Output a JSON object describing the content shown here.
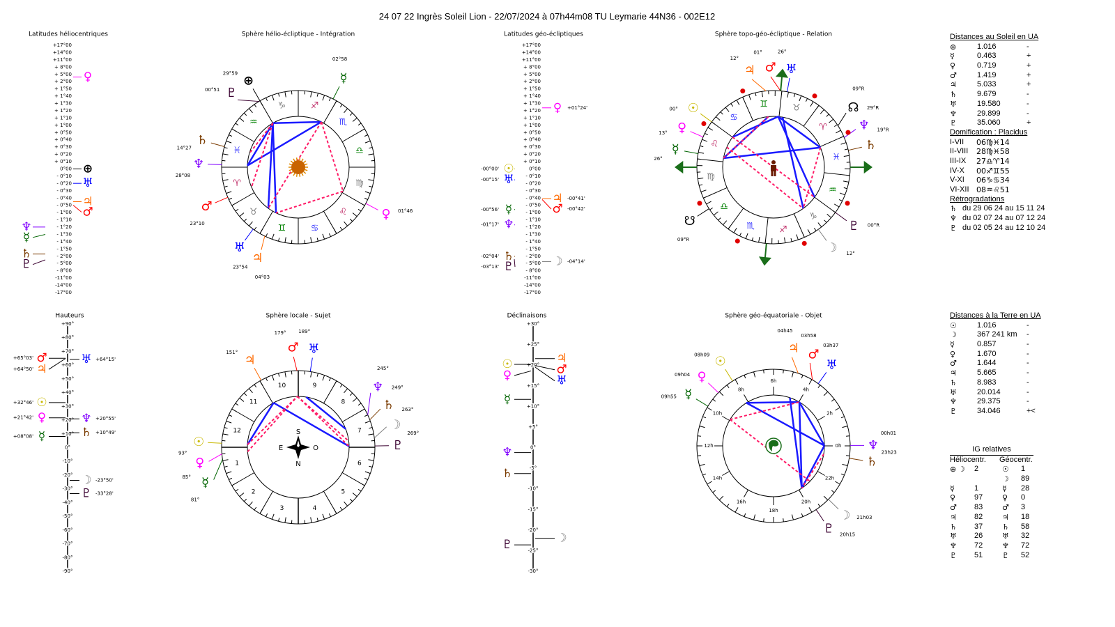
{
  "title": "24 07 22 Ingrès Soleil Lion   -  22/07/2024 à 07h44m08 TU  Leymarie  44N36 - 002E12",
  "planet_styles": {
    "sun": {
      "glyph": "☉",
      "color": "#c8b800"
    },
    "moon": {
      "glyph": "☽",
      "color": "#808080"
    },
    "mercury": {
      "glyph": "☿",
      "color": "#006400"
    },
    "venus": {
      "glyph": "♀",
      "color": "#ff00ff"
    },
    "earth": {
      "glyph": "⊕",
      "color": "#000000"
    },
    "mars": {
      "glyph": "♂",
      "color": "#ff0000"
    },
    "jupiter": {
      "glyph": "♃",
      "color": "#ff6a00"
    },
    "saturn": {
      "glyph": "♄",
      "color": "#7a3b00"
    },
    "uranus": {
      "glyph": "♅",
      "color": "#0000ff"
    },
    "neptune": {
      "glyph": "♆",
      "color": "#8000ff"
    },
    "pluto": {
      "glyph": "♇",
      "color": "#3a0030"
    },
    "north_node": {
      "glyph": "☊",
      "color": "#000000"
    },
    "south_node": {
      "glyph": "☋",
      "color": "#000000"
    }
  },
  "signs": [
    {
      "glyph": "♈",
      "color": "#c0306a"
    },
    {
      "glyph": "♉",
      "color": "#808080"
    },
    {
      "glyph": "♊",
      "color": "#008000"
    },
    {
      "glyph": "♋",
      "color": "#4040ff"
    },
    {
      "glyph": "♌",
      "color": "#c0306a"
    },
    {
      "glyph": "♍",
      "color": "#808080"
    },
    {
      "glyph": "♎",
      "color": "#008000"
    },
    {
      "glyph": "♏",
      "color": "#4040ff"
    },
    {
      "glyph": "♐",
      "color": "#c0306a"
    },
    {
      "glyph": "♑",
      "color": "#808080"
    },
    {
      "glyph": "♒",
      "color": "#008000"
    },
    {
      "glyph": "♓",
      "color": "#4040ff"
    }
  ],
  "helio_latitudes": {
    "title": "Latitudes héliocentriques",
    "ticks": [
      "+17°00",
      "+14°00",
      "+11°00",
      "+ 8°00",
      "+ 5°00",
      "+ 2°00",
      "+ 1°50",
      "+ 1°40",
      "+ 1°30",
      "+ 1°20",
      "+ 1°10",
      "+ 1°00",
      "+ 0°50",
      "+ 0°40",
      "+ 0°30",
      "+ 0°20",
      "+ 0°10",
      "0°00",
      "- 0°10",
      "- 0°20",
      "- 0°30",
      "- 0°40",
      "- 0°50",
      "- 1°00",
      "- 1°10",
      "- 1°20",
      "- 1°30",
      "- 1°40",
      "- 1°50",
      "- 2°00",
      "- 5°00",
      "- 8°00",
      "-11°00",
      "-14°00",
      "-17°00"
    ],
    "planets": [
      {
        "id": "venus",
        "lat": 3.9,
        "side": "right"
      },
      {
        "id": "earth",
        "lat": 0,
        "side": "right"
      },
      {
        "id": "uranus",
        "lat": -0.33,
        "side": "right"
      },
      {
        "id": "jupiter",
        "lat": -0.75,
        "side": "right"
      },
      {
        "id": "mars",
        "lat": -0.83,
        "side": "right"
      },
      {
        "id": "neptune",
        "lat": -1.33,
        "side": "left"
      },
      {
        "id": "mercury",
        "lat": -1.5,
        "side": "left"
      },
      {
        "id": "saturn",
        "lat": -1.95,
        "side": "left"
      },
      {
        "id": "pluto",
        "lat": -3.5,
        "side": "left"
      }
    ]
  },
  "geo_latitudes": {
    "title": "Latitudes géo-écliptiques",
    "ticks": [
      "+17°00",
      "+14°00",
      "+11°00",
      "+ 8°00",
      "+ 5°00",
      "+ 2°00",
      "+ 1°50",
      "+ 1°40",
      "+ 1°30",
      "+ 1°20",
      "+ 1°10",
      "+ 1°00",
      "+ 0°50",
      "+ 0°40",
      "+ 0°30",
      "+ 0°20",
      "+ 0°10",
      "0°00",
      "- 0°10",
      "- 0°20",
      "- 0°30",
      "- 0°40",
      "- 0°50",
      "- 1°00",
      "- 1°10",
      "- 1°20",
      "- 1°30",
      "- 1°40",
      "- 1°50",
      "- 2°00",
      "- 5°00",
      "- 8°00",
      "-11°00",
      "-14°00",
      "-17°00"
    ],
    "planets": [
      {
        "id": "sun",
        "lat": 0,
        "side": "left",
        "label": "-00°00'"
      },
      {
        "id": "uranus",
        "lat": -0.25,
        "side": "left",
        "label": "-00°15'"
      },
      {
        "id": "mercury",
        "lat": -0.93,
        "side": "left",
        "label": "-00°56'"
      },
      {
        "id": "neptune",
        "lat": -1.28,
        "side": "left",
        "label": "-01°17'"
      },
      {
        "id": "saturn",
        "lat": -2.07,
        "side": "left",
        "label": "-02°04'"
      },
      {
        "id": "pluto",
        "lat": -3.22,
        "side": "left",
        "label": "-03°13'"
      },
      {
        "id": "venus",
        "lat": 1.4,
        "side": "right",
        "label": "+01°24'"
      },
      {
        "id": "jupiter",
        "lat": -0.68,
        "side": "right",
        "label": "-00°41'"
      },
      {
        "id": "mars",
        "lat": -0.7,
        "side": "right",
        "label": "-00°42'"
      },
      {
        "id": "moon",
        "lat": -4.23,
        "side": "right",
        "label": "-04°14'"
      }
    ]
  },
  "heights": {
    "title": "Hauteurs",
    "ticks": [
      "+90°",
      "+80°",
      "+70°",
      "+60°",
      "+50°",
      "+40°",
      "+30°",
      "+20°",
      "+10°",
      "0°",
      "-10°",
      "-20°",
      "-30°",
      "-40°",
      "-50°",
      "-60°",
      "-70°",
      "-80°",
      "-90°"
    ],
    "planets": [
      {
        "id": "mars",
        "value": 65.05,
        "side": "left",
        "label": "+65°03'"
      },
      {
        "id": "jupiter",
        "value": 64.83,
        "side": "left",
        "label": "+64°50'"
      },
      {
        "id": "sun",
        "value": 32.77,
        "side": "left",
        "label": "+32°46'"
      },
      {
        "id": "venus",
        "value": 21.7,
        "side": "left",
        "label": "+21°42'"
      },
      {
        "id": "mercury",
        "value": 8.13,
        "side": "left",
        "label": "+08°08'"
      },
      {
        "id": "uranus",
        "value": 64.25,
        "side": "right",
        "label": "+64°15'"
      },
      {
        "id": "neptune",
        "value": 20.92,
        "side": "right",
        "label": "+20°55'"
      },
      {
        "id": "saturn",
        "value": 10.82,
        "side": "right",
        "label": "+10°49'"
      },
      {
        "id": "moon",
        "value": -23.83,
        "side": "right",
        "label": "-23°50'"
      },
      {
        "id": "pluto",
        "value": -33.47,
        "side": "right",
        "label": "-33°28'"
      }
    ]
  },
  "declinations": {
    "title": "Déclinaisons",
    "ticks": [
      "+30°",
      "+25°",
      "+20°",
      "+15°",
      "+10°",
      "+5°",
      "0°",
      "-5°",
      "-10°",
      "-15°",
      "-20°",
      "-25°",
      "-30°"
    ],
    "planets": [
      {
        "id": "sun",
        "value": 20.2,
        "side": "left"
      },
      {
        "id": "venus",
        "value": 18.6,
        "side": "left"
      },
      {
        "id": "mercury",
        "value": 11.7,
        "side": "left"
      },
      {
        "id": "neptune",
        "value": -1.2,
        "side": "left"
      },
      {
        "id": "saturn",
        "value": -6.3,
        "side": "left"
      },
      {
        "id": "pluto",
        "value": -23.6,
        "side": "left"
      },
      {
        "id": "jupiter",
        "value": 21.6,
        "side": "right"
      },
      {
        "id": "mars",
        "value": 19.9,
        "side": "right"
      },
      {
        "id": "uranus",
        "value": 19.5,
        "side": "right"
      },
      {
        "id": "moon",
        "value": -22.0,
        "side": "right"
      }
    ]
  },
  "helio_wheel": {
    "title": "Sphère hélio-écliptique - Intégration",
    "planets": [
      {
        "id": "pluto",
        "lon": 300.85,
        "label": "00°51"
      },
      {
        "id": "earth",
        "lon": 299.98,
        "label": "29°59"
      },
      {
        "id": "mercury",
        "lon": 242.97,
        "label": "02°58"
      },
      {
        "id": "saturn",
        "lon": 344.45,
        "label": "14°27"
      },
      {
        "id": "neptune",
        "lon": 358.13,
        "label": "28°08"
      },
      {
        "id": "mars",
        "lon": 23.17,
        "label": "23°10"
      },
      {
        "id": "uranus",
        "lon": 53.9,
        "label": "23°54"
      },
      {
        "id": "jupiter",
        "lon": 64.05,
        "label": "04°03"
      },
      {
        "id": "venus",
        "lon": 151.77,
        "label": "01°46"
      }
    ],
    "aspects": [
      {
        "a": "earth",
        "b": "mercury",
        "type": "harmonious"
      },
      {
        "a": "earth",
        "b": "neptune",
        "type": "harmonious"
      },
      {
        "a": "neptune",
        "b": "mercury",
        "type": "harmonious"
      },
      {
        "a": "earth",
        "b": "uranus",
        "type": "harmonious"
      },
      {
        "a": "earth",
        "b": "jupiter",
        "type": "harmonious"
      },
      {
        "a": "mercury",
        "b": "venus",
        "type": "tense"
      },
      {
        "a": "venus",
        "b": "jupiter",
        "type": "tense"
      },
      {
        "a": "earth",
        "b": "saturn",
        "type": "tense"
      },
      {
        "a": "earth",
        "b": "mars",
        "type": "tense"
      },
      {
        "a": "mercury",
        "b": "uranus",
        "type": "tense"
      }
    ]
  },
  "topo_wheel": {
    "title": "Sphère topo-géo-écliptique - Relation",
    "ascendant": 156.23,
    "midheaven": 60.92,
    "planets": [
      {
        "id": "jupiter",
        "lon": 72,
        "label": "12°"
      },
      {
        "id": "mars",
        "lon": 61,
        "label": "01°"
      },
      {
        "id": "uranus",
        "lon": 56,
        "label": "26°"
      },
      {
        "id": "sun",
        "lon": 120,
        "label": "00°"
      },
      {
        "id": "venus",
        "lon": 133,
        "label": "13°"
      },
      {
        "id": "mercury",
        "lon": 146,
        "label": "26°"
      },
      {
        "id": "north_node",
        "lon": 9,
        "label": "09°R"
      },
      {
        "id": "neptune",
        "lon": 359,
        "label": "29°R"
      },
      {
        "id": "saturn",
        "lon": 349,
        "label": "19°R"
      },
      {
        "id": "moon",
        "lon": 282,
        "label": "12°"
      },
      {
        "id": "pluto",
        "lon": 300,
        "label": "00°R"
      },
      {
        "id": "south_node",
        "lon": 189,
        "label": "09°R"
      }
    ],
    "aspects": [
      {
        "a": "mars",
        "b": "neptune",
        "type": "harmonious"
      },
      {
        "a": "mars",
        "b": "pluto",
        "type": "harmonious"
      },
      {
        "a": "uranus",
        "b": "moon",
        "type": "harmonious"
      },
      {
        "a": "jupiter",
        "b": "mercury",
        "type": "harmonious"
      },
      {
        "a": "mercury",
        "b": "neptune",
        "type": "harmonious"
      },
      {
        "a": "sun",
        "b": "mars",
        "type": "harmonious"
      },
      {
        "a": "neptune",
        "b": "moon",
        "type": "tense"
      },
      {
        "a": "venus",
        "b": "moon",
        "type": "tense"
      },
      {
        "a": "sun",
        "b": "pluto",
        "type": "tense"
      },
      {
        "a": "mercury",
        "b": "jupiter",
        "type": "tense"
      }
    ]
  },
  "local_wheel": {
    "title": "Sphère locale - Sujet",
    "house_numbers": [
      "1",
      "2",
      "3",
      "4",
      "5",
      "6",
      "7",
      "8",
      "9",
      "10",
      "11",
      "12"
    ],
    "cardinals": {
      "south": "S",
      "north": "N",
      "east": "E",
      "west": "O"
    },
    "planets": [
      {
        "id": "jupiter",
        "az": 151,
        "label": "151°"
      },
      {
        "id": "mars",
        "az": 179,
        "label": "179°"
      },
      {
        "id": "uranus",
        "az": 189,
        "label": "189°"
      },
      {
        "id": "neptune",
        "az": 245,
        "label": "245°"
      },
      {
        "id": "saturn",
        "az": 249,
        "label": "249°"
      },
      {
        "id": "moon",
        "az": 263,
        "label": "263°"
      },
      {
        "id": "pluto",
        "az": 269,
        "label": "269°"
      },
      {
        "id": "sun",
        "az": 93,
        "label": "93°"
      },
      {
        "id": "venus",
        "az": 85,
        "label": "85°"
      },
      {
        "id": "mercury",
        "az": 81,
        "label": "81°"
      }
    ],
    "aspects": [
      {
        "a": "sun",
        "b": "jupiter",
        "type": "harmonious"
      },
      {
        "a": "jupiter",
        "b": "pluto",
        "type": "harmonious"
      },
      {
        "a": "uranus",
        "b": "saturn",
        "type": "harmonious"
      },
      {
        "a": "sun",
        "b": "mars",
        "type": "tense"
      },
      {
        "a": "mars",
        "b": "pluto",
        "type": "tense"
      },
      {
        "a": "venus",
        "b": "mars",
        "type": "tense"
      },
      {
        "a": "mars",
        "b": "moon",
        "type": "tense"
      }
    ]
  },
  "equatorial_wheel": {
    "title": "Sphère géo-équatoriale - Objet",
    "hour_labels": [
      "0h",
      "2h",
      "4h",
      "6h",
      "8h",
      "10h",
      "12h",
      "14h",
      "16h",
      "18h",
      "20h",
      "22h"
    ],
    "planets": [
      {
        "id": "jupiter",
        "ra": 4.75,
        "label": "04h45"
      },
      {
        "id": "mars",
        "ra": 3.97,
        "label": "03h58"
      },
      {
        "id": "uranus",
        "ra": 3.62,
        "label": "03h37"
      },
      {
        "id": "sun",
        "ra": 8.15,
        "label": "08h09"
      },
      {
        "id": "venus",
        "ra": 9.07,
        "label": "09h04"
      },
      {
        "id": "mercury",
        "ra": 9.92,
        "label": "09h55"
      },
      {
        "id": "neptune",
        "ra": 0.02,
        "label": "00h01"
      },
      {
        "id": "saturn",
        "ra": 23.38,
        "label": "23h23"
      },
      {
        "id": "moon",
        "ra": 21.05,
        "label": "21h03"
      },
      {
        "id": "pluto",
        "ra": 20.25,
        "label": "20h15"
      }
    ],
    "aspects": [
      {
        "a": "sun",
        "b": "mars",
        "type": "harmonious"
      },
      {
        "a": "sun",
        "b": "neptune",
        "type": "harmonious"
      },
      {
        "a": "mars",
        "b": "pluto",
        "type": "harmonious"
      },
      {
        "a": "jupiter",
        "b": "pluto",
        "type": "harmonious"
      },
      {
        "a": "mars",
        "b": "neptune",
        "type": "harmonious"
      },
      {
        "a": "neptune",
        "b": "pluto",
        "type": "harmonious"
      },
      {
        "a": "mercury",
        "b": "mars",
        "type": "tense"
      },
      {
        "a": "mercury",
        "b": "moon",
        "type": "tense"
      },
      {
        "a": "saturn",
        "b": "pluto",
        "type": "tense"
      }
    ]
  },
  "distances_sun": {
    "title": "Distances au Soleil en UA",
    "rows": [
      {
        "planet": "earth",
        "value": "1.016",
        "sign": "-"
      },
      {
        "planet": "mercury",
        "value": "0.463",
        "sign": "+"
      },
      {
        "planet": "venus",
        "value": "0.719",
        "sign": "+"
      },
      {
        "planet": "mars",
        "value": "1.419",
        "sign": "+"
      },
      {
        "planet": "jupiter",
        "value": "5.033",
        "sign": "+"
      },
      {
        "planet": "saturn",
        "value": "9.679",
        "sign": "-"
      },
      {
        "planet": "uranus",
        "value": "19.580",
        "sign": "-"
      },
      {
        "planet": "neptune",
        "value": "29.899",
        "sign": "-"
      },
      {
        "planet": "pluto",
        "value": "35.060",
        "sign": "+"
      }
    ]
  },
  "domification": {
    "title": "Domification : Placidus",
    "rows": [
      {
        "houses": "I-VII",
        "value": "06♍♓14"
      },
      {
        "houses": "II-VIII",
        "value": "28♍♓58"
      },
      {
        "houses": "III-IX",
        "value": "27♎♈14"
      },
      {
        "houses": "IV-X",
        "value": "00♐♊55"
      },
      {
        "houses": "V-XI",
        "value": "06♑♋34"
      },
      {
        "houses": "VI-XII",
        "value": "08♒♌51"
      }
    ]
  },
  "retrogradations": {
    "title": "Rétrogradations",
    "rows": [
      {
        "planet": "saturn",
        "text": "du 29 06 24 au 15 11 24"
      },
      {
        "planet": "neptune",
        "text": "du 02 07 24 au 07 12 24"
      },
      {
        "planet": "pluto",
        "text": "du 02 05 24 au 12 10 24"
      }
    ]
  },
  "distances_earth": {
    "title": "Distances à la Terre en UA",
    "rows": [
      {
        "planet": "sun",
        "value": "1.016",
        "sign": "-"
      },
      {
        "planet": "moon",
        "value": "367 241 km",
        "sign": "-"
      },
      {
        "planet": "mercury",
        "value": "0.857",
        "sign": "-"
      },
      {
        "planet": "venus",
        "value": "1.670",
        "sign": "-"
      },
      {
        "planet": "mars",
        "value": "1.644",
        "sign": "-"
      },
      {
        "planet": "jupiter",
        "value": "5.665",
        "sign": "-"
      },
      {
        "planet": "saturn",
        "value": "8.983",
        "sign": "-"
      },
      {
        "planet": "uranus",
        "value": "20.014",
        "sign": "-"
      },
      {
        "planet": "neptune",
        "value": "29.375",
        "sign": "-"
      },
      {
        "planet": "pluto",
        "value": "34.046",
        "sign": "+<"
      }
    ]
  },
  "ig_relatives": {
    "title": "IG relatives",
    "helio_header": "Héliocentr.",
    "geo_header": "Géocentr.",
    "rows": [
      {
        "h": [
          "earth",
          "moon"
        ],
        "hv": "2",
        "g": "sun",
        "gv": "1"
      },
      {
        "h": [],
        "hv": "",
        "g": "moon",
        "gv": "89"
      },
      {
        "h": [
          "mercury"
        ],
        "hv": "1",
        "g": "mercury",
        "gv": "28"
      },
      {
        "h": [
          "venus"
        ],
        "hv": "97",
        "g": "venus",
        "gv": "0"
      },
      {
        "h": [
          "mars"
        ],
        "hv": "83",
        "g": "mars",
        "gv": "3"
      },
      {
        "h": [
          "jupiter"
        ],
        "hv": "82",
        "g": "jupiter",
        "gv": "18"
      },
      {
        "h": [
          "saturn"
        ],
        "hv": "37",
        "g": "saturn",
        "gv": "58"
      },
      {
        "h": [
          "uranus"
        ],
        "hv": "26",
        "g": "uranus",
        "gv": "32"
      },
      {
        "h": [
          "neptune"
        ],
        "hv": "72",
        "g": "neptune",
        "gv": "72"
      },
      {
        "h": [
          "pluto"
        ],
        "hv": "51",
        "g": "pluto",
        "gv": "52"
      }
    ]
  }
}
